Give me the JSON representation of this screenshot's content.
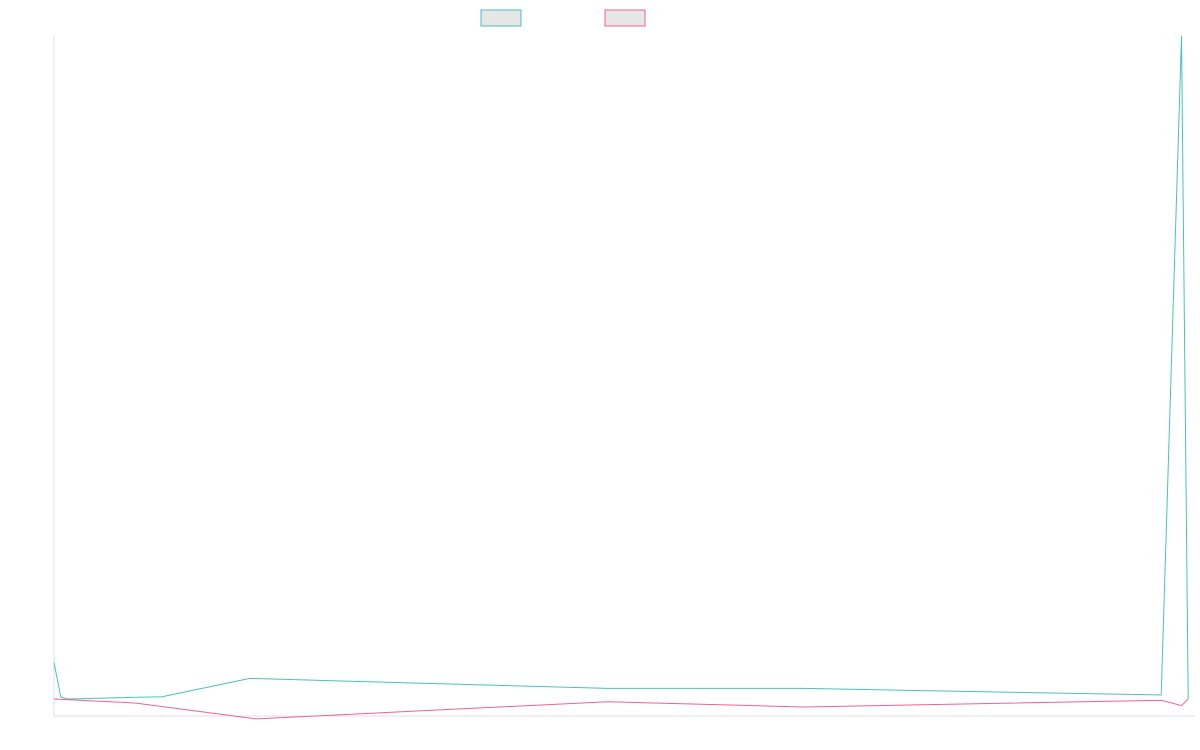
{
  "chart_data": {
    "type": "line",
    "title": "",
    "xlabel": "",
    "ylabel": "",
    "grid": false,
    "legend": "top-center",
    "x_count": 170,
    "ylim": [
      0,
      100
    ],
    "series": [
      {
        "color": "#4bc0c0",
        "fill": "#e6e6e6",
        "points": [
          [
            0,
            5.5
          ],
          [
            1,
            0.3
          ],
          [
            2,
            0
          ],
          [
            16,
            0.35
          ],
          [
            29,
            3.1
          ],
          [
            82,
            1.6
          ],
          [
            111,
            1.6
          ],
          [
            164,
            0.6
          ],
          [
            167,
            100
          ],
          [
            168,
            0
          ]
        ]
      },
      {
        "color": "#f06292",
        "fill": "#e6e6e6",
        "points": [
          [
            0,
            0
          ],
          [
            12,
            -0.6
          ],
          [
            30,
            -3.0
          ],
          [
            82,
            -0.4
          ],
          [
            111,
            -1.2
          ],
          [
            164,
            -0.2
          ],
          [
            167,
            -1.0
          ],
          [
            168,
            0
          ]
        ]
      }
    ]
  }
}
